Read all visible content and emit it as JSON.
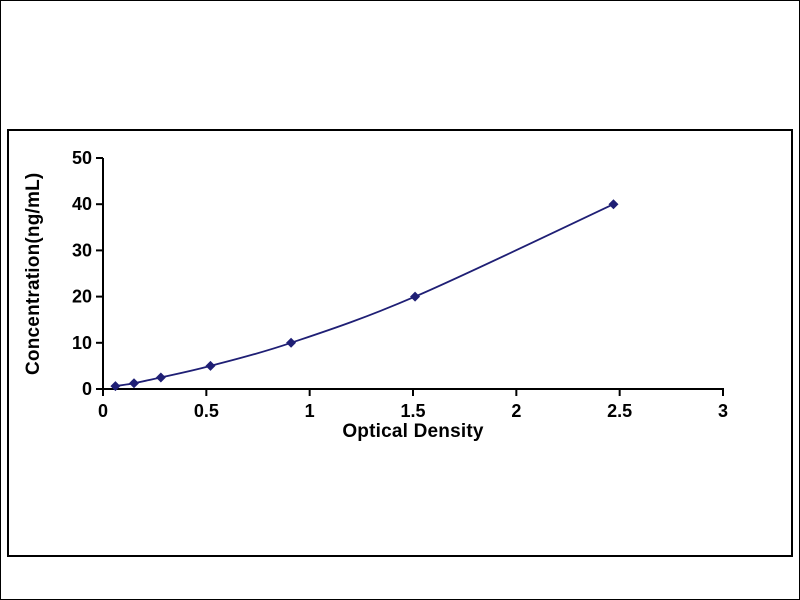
{
  "figure": {
    "background_color": "#ffffff",
    "frame_border_color": "#000000",
    "plot_border_color": "#000000"
  },
  "chart_data": {
    "type": "line",
    "title": "",
    "xlabel": "Optical Density",
    "ylabel": "Concentration(ng/mL)",
    "x": [
      0.06,
      0.15,
      0.28,
      0.52,
      0.91,
      1.51,
      2.47
    ],
    "y": [
      0.625,
      1.25,
      2.5,
      5,
      10,
      20,
      40
    ],
    "xlim": [
      0,
      3
    ],
    "ylim": [
      0,
      50
    ],
    "x_ticks": [
      0,
      0.5,
      1,
      1.5,
      2,
      2.5,
      3
    ],
    "x_tick_labels": [
      "0",
      "0.5",
      "1",
      "1.5",
      "2",
      "2.5",
      "3"
    ],
    "y_ticks": [
      0,
      10,
      20,
      30,
      40,
      50
    ],
    "y_tick_labels": [
      "0",
      "10",
      "20",
      "30",
      "40",
      "50"
    ],
    "grid": false,
    "legend": "none",
    "line_color": "#1F1F75",
    "marker": "diamond",
    "marker_color": "#1F1F75",
    "axis_color": "#000000",
    "tick_label_color": "#000000"
  }
}
